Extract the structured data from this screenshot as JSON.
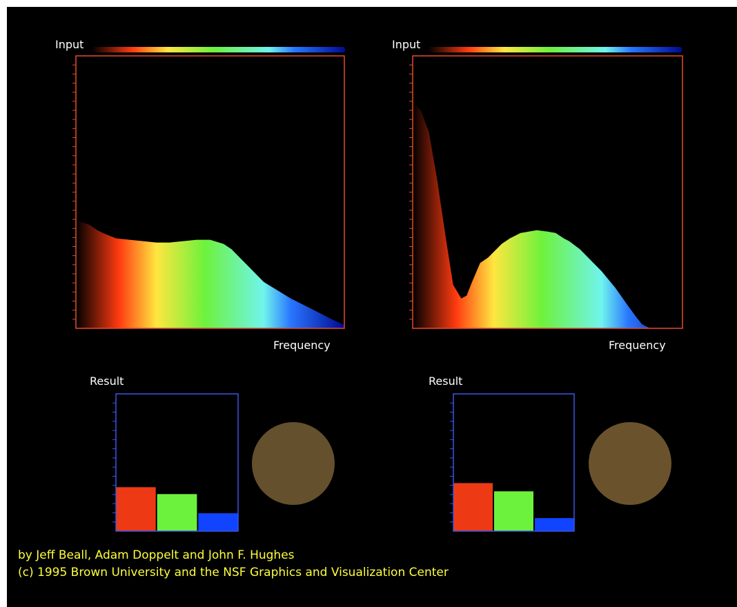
{
  "colors": {
    "background": "#000000",
    "input_frame": "#e84a2a",
    "result_frame": "#3a55e8",
    "bar_red": "#ee3a14",
    "bar_green": "#6cf23c",
    "bar_blue": "#1044ff",
    "credit_text": "#ffff3c"
  },
  "spectrum_stops": [
    {
      "pos": 0.0,
      "color": "#000000"
    },
    {
      "pos": 0.16,
      "color": "#ff3a10"
    },
    {
      "pos": 0.3,
      "color": "#ffe640"
    },
    {
      "pos": 0.48,
      "color": "#6ef23c"
    },
    {
      "pos": 0.7,
      "color": "#6ff4ee"
    },
    {
      "pos": 0.8,
      "color": "#2a76ff"
    },
    {
      "pos": 1.0,
      "color": "#000a90"
    }
  ],
  "credits": {
    "line1": "by Jeff Beall, Adam Doppelt and John F. Hughes",
    "line2": "(c) 1995 Brown University and the NSF Graphics and Visualization Center"
  },
  "chart_data": [
    {
      "type": "area",
      "title": "Input",
      "xlabel": "Frequency",
      "ylabel": "",
      "xlim": [
        0,
        1
      ],
      "ylim": [
        0,
        1
      ],
      "x": [
        0.0,
        0.02,
        0.05,
        0.08,
        0.1,
        0.15,
        0.2,
        0.25,
        0.3,
        0.35,
        0.4,
        0.45,
        0.5,
        0.55,
        0.58,
        0.6,
        0.65,
        0.7,
        0.75,
        0.8,
        0.85,
        0.9,
        0.95,
        1.0
      ],
      "y": [
        0.4,
        0.39,
        0.38,
        0.36,
        0.35,
        0.33,
        0.325,
        0.32,
        0.315,
        0.315,
        0.32,
        0.325,
        0.325,
        0.31,
        0.29,
        0.27,
        0.22,
        0.17,
        0.14,
        0.11,
        0.085,
        0.06,
        0.035,
        0.012
      ]
    },
    {
      "type": "area",
      "title": "Input",
      "xlabel": "Frequency",
      "ylabel": "",
      "xlim": [
        0,
        1
      ],
      "ylim": [
        0,
        1
      ],
      "x": [
        0.0,
        0.03,
        0.06,
        0.09,
        0.12,
        0.15,
        0.18,
        0.2,
        0.22,
        0.25,
        0.28,
        0.3,
        0.33,
        0.36,
        0.4,
        0.43,
        0.46,
        0.5,
        0.53,
        0.56,
        0.58,
        0.62,
        0.65,
        0.7,
        0.75,
        0.8,
        0.83,
        0.85,
        0.88
      ],
      "y": [
        0.83,
        0.8,
        0.72,
        0.55,
        0.35,
        0.16,
        0.11,
        0.12,
        0.17,
        0.24,
        0.26,
        0.28,
        0.31,
        0.33,
        0.35,
        0.355,
        0.36,
        0.355,
        0.35,
        0.33,
        0.32,
        0.29,
        0.26,
        0.21,
        0.15,
        0.08,
        0.04,
        0.015,
        0.0
      ]
    },
    {
      "type": "bar",
      "title": "Result",
      "categories": [
        "red",
        "green",
        "blue"
      ],
      "values": [
        0.32,
        0.27,
        0.13
      ],
      "ylim": [
        0,
        1
      ]
    },
    {
      "type": "bar",
      "title": "Result",
      "categories": [
        "red",
        "green",
        "blue"
      ],
      "values": [
        0.35,
        0.29,
        0.095
      ],
      "ylim": [
        0,
        1
      ]
    }
  ],
  "swatches": [
    {
      "color": "#64502c"
    },
    {
      "color": "#6a532c"
    }
  ]
}
